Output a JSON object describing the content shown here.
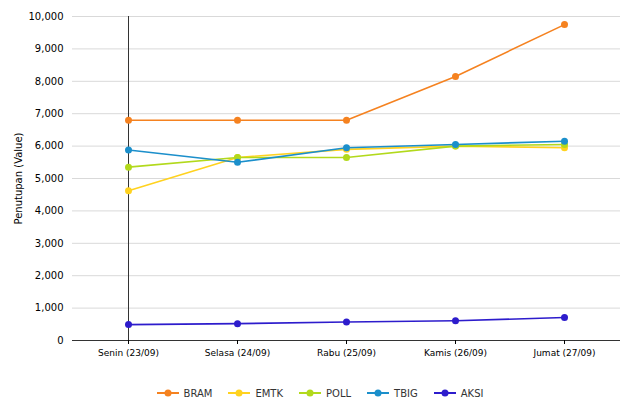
{
  "chart_data": {
    "type": "line",
    "y_label": "Penutupan (Value)",
    "categories": [
      "Senin (23/09)",
      "Selasa (24/09)",
      "Rabu (25/09)",
      "Kamis (26/09)",
      "Jumat (27/09)"
    ],
    "ylim": [
      0,
      10000
    ],
    "yticks": [
      0,
      {
        "value": 1000,
        "label": "1,000"
      },
      {
        "value": 2000,
        "label": "2,000"
      },
      {
        "value": 3000,
        "label": "3,000"
      },
      {
        "value": 4000,
        "label": "4,000"
      },
      {
        "value": 5000,
        "label": "5,000"
      },
      {
        "value": 6000,
        "label": "6,000"
      },
      {
        "value": 7000,
        "label": "7,000"
      },
      {
        "value": 8000,
        "label": "8,000"
      },
      {
        "value": 9000,
        "label": "9,000"
      },
      {
        "value": 10000,
        "label": "10,000"
      }
    ],
    "grid": true,
    "legend": "bottom",
    "marker": "circle",
    "series": [
      {
        "name": "BRAM",
        "color": "#f58220",
        "values": [
          6800,
          6800,
          6800,
          8150,
          9750
        ]
      },
      {
        "name": "EMTK",
        "color": "#ffd21f",
        "values": [
          4620,
          5650,
          5900,
          6000,
          5950
        ]
      },
      {
        "name": "POLL",
        "color": "#b2d91c",
        "values": [
          5350,
          5650,
          5650,
          6000,
          6050
        ]
      },
      {
        "name": "TBIG",
        "color": "#1b8fcb",
        "values": [
          5880,
          5500,
          5950,
          6050,
          6150
        ]
      },
      {
        "name": "AKSI",
        "color": "#2d1ccc",
        "values": [
          490,
          520,
          570,
          610,
          710
        ]
      }
    ]
  }
}
